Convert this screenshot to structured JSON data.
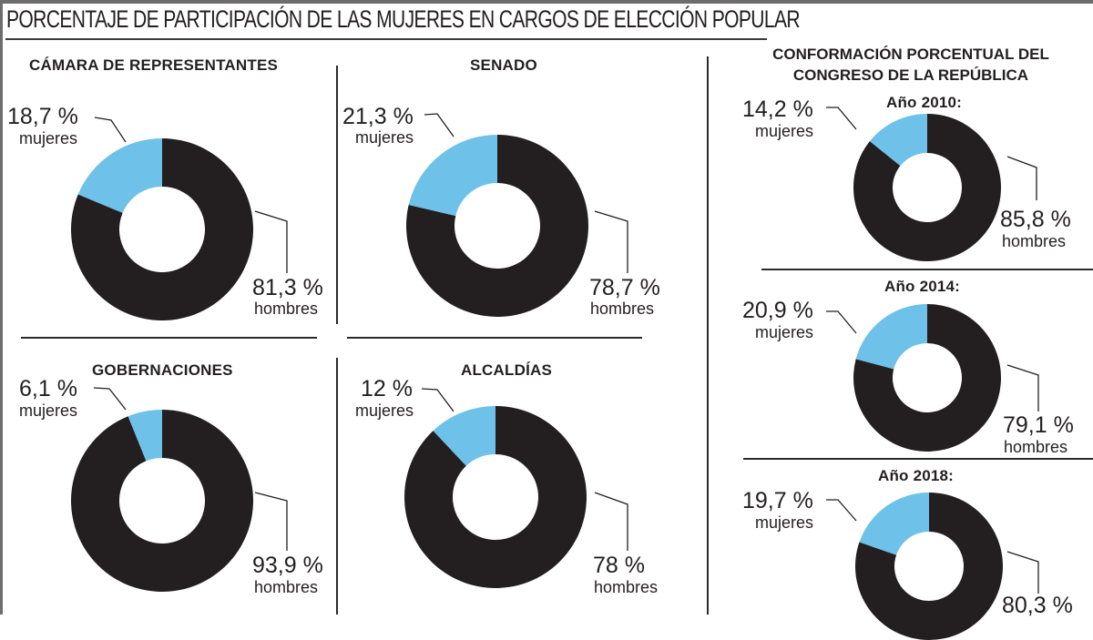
{
  "title": "PORCENTAJE DE PARTICIPACIÓN DE LAS MUJERES EN CARGOS DE ELECCIÓN POPULAR",
  "colors": {
    "mujeres": "#6ec1e8",
    "hombres": "#231f20"
  },
  "right_panel_title": [
    "CONFORMACIÓN PORCENTUAL DEL",
    "CONGRESO DE LA REPÚBLICA"
  ],
  "chart_data": [
    {
      "type": "pie",
      "variant": "donut",
      "title": "CÁMARA DE REPRESENTANTES",
      "slices": [
        {
          "label": "mujeres",
          "value": 18.7,
          "display": "18,7 %"
        },
        {
          "label": "hombres",
          "value": 81.3,
          "display": "81,3 %"
        }
      ]
    },
    {
      "type": "pie",
      "variant": "donut",
      "title": "SENADO",
      "slices": [
        {
          "label": "mujeres",
          "value": 21.3,
          "display": "21,3 %"
        },
        {
          "label": "hombres",
          "value": 78.7,
          "display": "78,7 %"
        }
      ]
    },
    {
      "type": "pie",
      "variant": "donut",
      "title": "GOBERNACIONES",
      "slices": [
        {
          "label": "mujeres",
          "value": 6.1,
          "display": "6,1 %"
        },
        {
          "label": "hombres",
          "value": 93.9,
          "display": "93,9 %"
        }
      ]
    },
    {
      "type": "pie",
      "variant": "donut",
      "title": "ALCALDÍAS",
      "slices": [
        {
          "label": "mujeres",
          "value": 12,
          "display": "12 %"
        },
        {
          "label": "hombres",
          "value": 78,
          "display": "78 %"
        }
      ]
    },
    {
      "type": "pie",
      "variant": "donut",
      "title": "Año 2010:",
      "group": "CONFORMACIÓN PORCENTUAL DEL CONGRESO DE LA REPÚBLICA",
      "slices": [
        {
          "label": "mujeres",
          "value": 14.2,
          "display": "14,2 %"
        },
        {
          "label": "hombres",
          "value": 85.8,
          "display": "85,8 %"
        }
      ]
    },
    {
      "type": "pie",
      "variant": "donut",
      "title": "Año 2014:",
      "group": "CONFORMACIÓN PORCENTUAL DEL CONGRESO DE LA REPÚBLICA",
      "slices": [
        {
          "label": "mujeres",
          "value": 20.9,
          "display": "20,9 %"
        },
        {
          "label": "hombres",
          "value": 79.1,
          "display": "79,1 %"
        }
      ]
    },
    {
      "type": "pie",
      "variant": "donut",
      "title": "Año 2018:",
      "group": "CONFORMACIÓN PORCENTUAL DEL CONGRESO DE LA REPÚBLICA",
      "slices": [
        {
          "label": "mujeres",
          "value": 19.7,
          "display": "19,7 %"
        },
        {
          "label": "hombres",
          "value": 80.3,
          "display": "80,3 %"
        }
      ]
    }
  ]
}
